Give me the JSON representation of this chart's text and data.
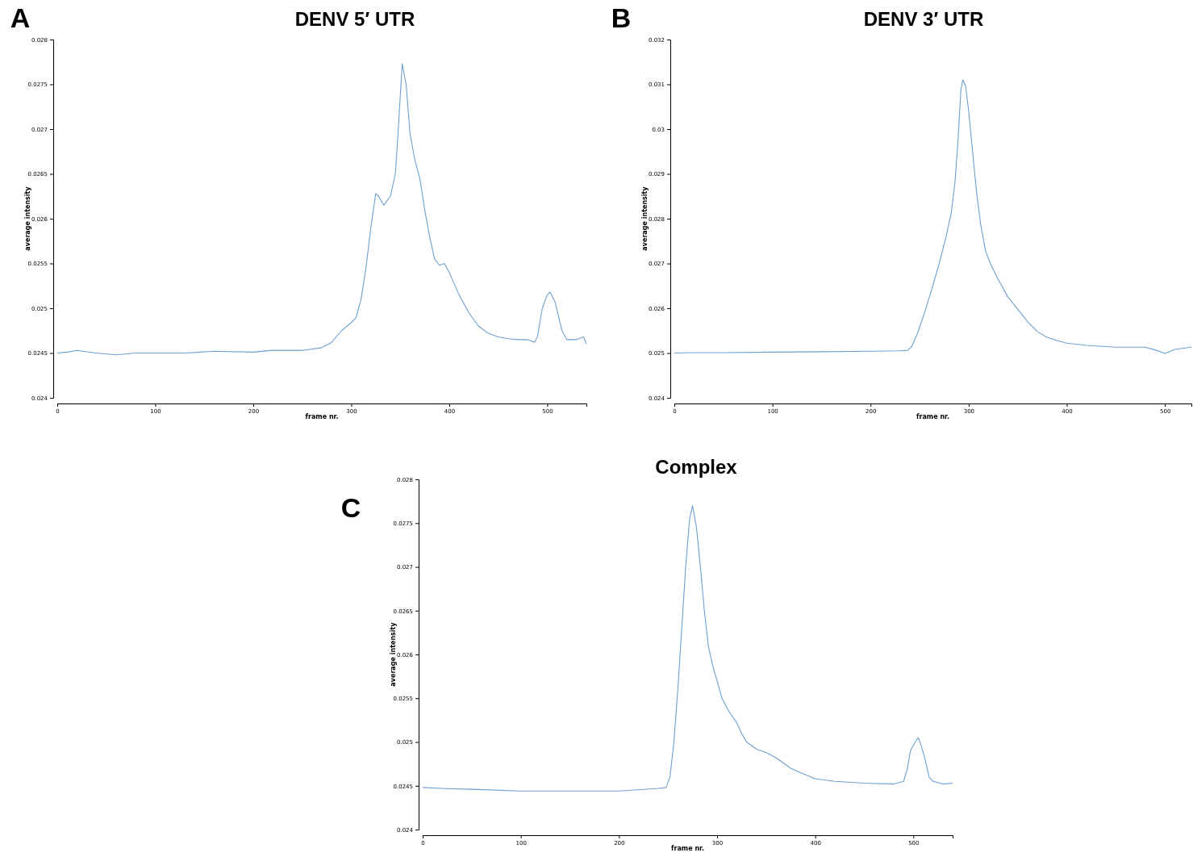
{
  "chart_data": [
    {
      "type": "line",
      "title": "DENV 5′ UTR",
      "xlabel": "frame nr.",
      "ylabel": "average intensity",
      "annotations": [
        "A"
      ],
      "xlim": [
        0,
        540
      ],
      "ylim": [
        0.024,
        0.028
      ],
      "xticks": [
        0,
        100,
        200,
        300,
        400,
        500
      ],
      "yticks": [
        0.024,
        0.0245,
        0.025,
        0.0255,
        0.026,
        0.0265,
        0.027,
        0.0275,
        0.028
      ],
      "series": [
        {
          "color": "#6f9fcf",
          "x": [
            0,
            10,
            20,
            40,
            60,
            80,
            100,
            130,
            160,
            200,
            220,
            250,
            270,
            280,
            290,
            300,
            305,
            310,
            315,
            320,
            325,
            328,
            333,
            340,
            345,
            348,
            352,
            356,
            360,
            365,
            370,
            375,
            380,
            385,
            390,
            395,
            400,
            410,
            420,
            430,
            440,
            450,
            460,
            470,
            480,
            487,
            490,
            495,
            500,
            503,
            508,
            515,
            520,
            530,
            537,
            540
          ],
          "values": [
            0.0245,
            0.02451,
            0.02453,
            0.0245,
            0.02448,
            0.0245,
            0.0245,
            0.0245,
            0.02452,
            0.02451,
            0.02453,
            0.02453,
            0.02456,
            0.02462,
            0.02475,
            0.02484,
            0.0249,
            0.0251,
            0.02545,
            0.0259,
            0.02628,
            0.02625,
            0.02615,
            0.02625,
            0.0265,
            0.027,
            0.02773,
            0.0275,
            0.02695,
            0.02665,
            0.02645,
            0.0261,
            0.0258,
            0.02555,
            0.02548,
            0.0255,
            0.0254,
            0.02515,
            0.02495,
            0.0248,
            0.02472,
            0.02468,
            0.02466,
            0.02465,
            0.02465,
            0.02462,
            0.02468,
            0.025,
            0.02515,
            0.02518,
            0.02507,
            0.02475,
            0.02465,
            0.02465,
            0.02468,
            0.0246
          ]
        }
      ]
    },
    {
      "type": "line",
      "title": "DENV 3′ UTR",
      "xlabel": "frame nr.",
      "ylabel": "average intensity",
      "annotations": [
        "B"
      ],
      "xlim": [
        0,
        527
      ],
      "ylim": [
        0.024,
        0.032
      ],
      "xticks": [
        0,
        100,
        200,
        300,
        400,
        500
      ],
      "yticks": [
        0.024,
        0.025,
        0.026,
        0.027,
        0.028,
        0.029,
        0.03,
        0.031,
        0.032
      ],
      "series": [
        {
          "color": "#6f9fcf",
          "x": [
            0,
            20,
            50,
            100,
            150,
            200,
            230,
            238,
            242,
            248,
            255,
            262,
            270,
            277,
            282,
            286,
            289,
            292,
            294,
            297,
            300,
            304,
            308,
            312,
            317,
            322,
            330,
            340,
            350,
            360,
            370,
            380,
            390,
            400,
            420,
            450,
            480,
            490,
            500,
            510,
            527
          ],
          "values": [
            0.025,
            0.02501,
            0.02501,
            0.02502,
            0.02503,
            0.02504,
            0.02505,
            0.02506,
            0.02515,
            0.02545,
            0.0259,
            0.0264,
            0.027,
            0.0276,
            0.0281,
            0.0288,
            0.0297,
            0.03085,
            0.0311,
            0.03095,
            0.0304,
            0.0295,
            0.0286,
            0.0279,
            0.0273,
            0.027,
            0.02665,
            0.02625,
            0.02598,
            0.0257,
            0.02548,
            0.02535,
            0.02528,
            0.02522,
            0.02517,
            0.02513,
            0.02513,
            0.02507,
            0.02499,
            0.02508,
            0.02513
          ]
        }
      ]
    },
    {
      "type": "line",
      "title": "Complex",
      "xlabel": "frame nr.",
      "ylabel": "average intensity",
      "annotations": [
        "C"
      ],
      "xlim": [
        0,
        540
      ],
      "ylim": [
        0.024,
        0.028
      ],
      "xticks": [
        0,
        100,
        200,
        300,
        400,
        500
      ],
      "yticks": [
        0.024,
        0.0245,
        0.025,
        0.0255,
        0.026,
        0.0265,
        0.027,
        0.0275,
        0.028
      ],
      "series": [
        {
          "color": "#6f9fcf",
          "x": [
            0,
            20,
            50,
            100,
            150,
            200,
            240,
            248,
            252,
            256,
            260,
            264,
            268,
            272,
            275,
            279,
            283,
            287,
            291,
            296,
            300,
            305,
            312,
            320,
            325,
            330,
            340,
            350,
            360,
            375,
            385,
            400,
            420,
            450,
            480,
            490,
            494,
            497,
            502,
            505,
            508,
            512,
            516,
            520,
            530,
            540
          ],
          "values": [
            0.02448,
            0.02447,
            0.02446,
            0.02444,
            0.02444,
            0.02444,
            0.02447,
            0.02448,
            0.0246,
            0.025,
            0.0256,
            0.0263,
            0.027,
            0.02755,
            0.0277,
            0.02745,
            0.027,
            0.0265,
            0.0261,
            0.02585,
            0.0257,
            0.0255,
            0.02535,
            0.02522,
            0.0251,
            0.025,
            0.02492,
            0.02488,
            0.02482,
            0.0247,
            0.02465,
            0.02458,
            0.02455,
            0.02453,
            0.02452,
            0.02455,
            0.0247,
            0.0249,
            0.025,
            0.02505,
            0.02496,
            0.0248,
            0.0246,
            0.02455,
            0.02452,
            0.02453
          ]
        }
      ]
    }
  ]
}
